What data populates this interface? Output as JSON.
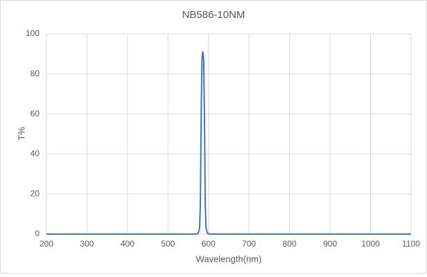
{
  "chart_data": {
    "type": "line",
    "title": "NB586-10NM",
    "x_label": "Wavelength(nm)",
    "y_label": "T%",
    "x": [
      200,
      570,
      575,
      578,
      580,
      582,
      584,
      586,
      588,
      590,
      592,
      594,
      597,
      602,
      1100
    ],
    "series": [
      {
        "name": "T%",
        "color": "#4472c4",
        "values": [
          0,
          0,
          0.5,
          3,
          15,
          60,
          88,
          91,
          88,
          60,
          15,
          3,
          0.5,
          0,
          0
        ]
      }
    ],
    "xlim": [
      200,
      1100
    ],
    "xticks": [
      200,
      300,
      400,
      500,
      600,
      700,
      800,
      900,
      1000,
      1100
    ],
    "ylim": [
      0,
      100
    ],
    "yticks": [
      0,
      20,
      40,
      60,
      80,
      100
    ],
    "grid": true
  }
}
